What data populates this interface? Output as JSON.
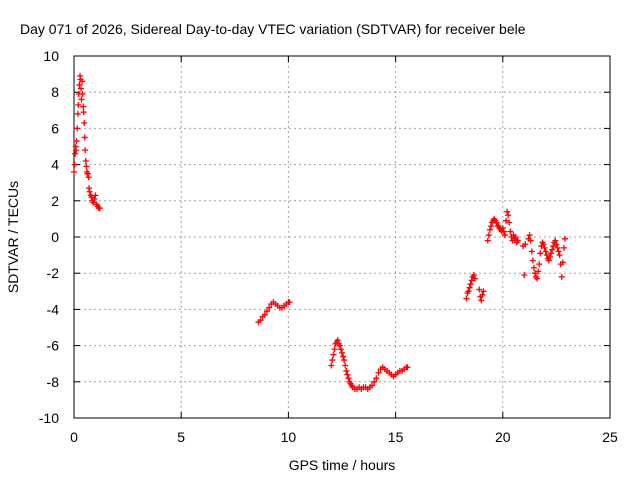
{
  "chart_data": {
    "type": "scatter",
    "title": "Day 071 of 2026, Sidereal Day-to-day VTEC variation (SDTVAR) for receiver bele",
    "xlabel": "GPS time / hours",
    "ylabel": "SDTVAR / TECUs",
    "xlim": [
      0,
      25
    ],
    "ylim": [
      -10,
      10
    ],
    "xticks": [
      0,
      5,
      10,
      15,
      20,
      25
    ],
    "yticks": [
      -10,
      -8,
      -6,
      -4,
      -2,
      0,
      2,
      4,
      6,
      8,
      10
    ],
    "grid": true,
    "marker": "plus",
    "color": "#ff0000",
    "series": [
      {
        "name": "segment-1",
        "points": [
          [
            0.0,
            3.6
          ],
          [
            0.03,
            4.0
          ],
          [
            0.05,
            4.6
          ],
          [
            0.08,
            5.0
          ],
          [
            0.1,
            4.8
          ],
          [
            0.12,
            5.3
          ],
          [
            0.15,
            6.0
          ],
          [
            0.18,
            6.8
          ],
          [
            0.2,
            7.3
          ],
          [
            0.22,
            7.9
          ],
          [
            0.25,
            8.4
          ],
          [
            0.28,
            8.9
          ],
          [
            0.3,
            8.7
          ],
          [
            0.33,
            8.2
          ],
          [
            0.35,
            7.6
          ],
          [
            0.38,
            8.6
          ],
          [
            0.4,
            7.9
          ],
          [
            0.43,
            7.2
          ],
          [
            0.45,
            6.9
          ],
          [
            0.48,
            6.3
          ],
          [
            0.5,
            5.5
          ],
          [
            0.52,
            4.8
          ],
          [
            0.55,
            4.2
          ],
          [
            0.58,
            3.9
          ],
          [
            0.6,
            3.6
          ],
          [
            0.63,
            3.5
          ],
          [
            0.65,
            3.5
          ],
          [
            0.68,
            3.3
          ],
          [
            0.7,
            2.7
          ],
          [
            0.73,
            2.5
          ],
          [
            0.78,
            2.3
          ],
          [
            0.82,
            2.2
          ],
          [
            0.85,
            2.0
          ],
          [
            0.9,
            1.9
          ],
          [
            0.95,
            2.1
          ],
          [
            1.0,
            2.3
          ],
          [
            1.05,
            1.8
          ],
          [
            1.1,
            1.7
          ],
          [
            1.15,
            1.6
          ],
          [
            1.2,
            1.6
          ]
        ]
      },
      {
        "name": "segment-2",
        "points": [
          [
            8.6,
            -4.7
          ],
          [
            8.7,
            -4.6
          ],
          [
            8.8,
            -4.4
          ],
          [
            8.9,
            -4.3
          ],
          [
            9.0,
            -4.1
          ],
          [
            9.1,
            -3.9
          ],
          [
            9.2,
            -3.7
          ],
          [
            9.3,
            -3.6
          ],
          [
            9.4,
            -3.7
          ],
          [
            9.5,
            -3.8
          ],
          [
            9.6,
            -3.9
          ],
          [
            9.7,
            -3.9
          ],
          [
            9.8,
            -3.8
          ],
          [
            9.9,
            -3.7
          ],
          [
            10.0,
            -3.6
          ],
          [
            10.05,
            -3.6
          ]
        ]
      },
      {
        "name": "segment-3",
        "points": [
          [
            12.0,
            -7.1
          ],
          [
            12.05,
            -6.8
          ],
          [
            12.1,
            -6.5
          ],
          [
            12.15,
            -6.2
          ],
          [
            12.2,
            -5.9
          ],
          [
            12.25,
            -5.8
          ],
          [
            12.3,
            -5.7
          ],
          [
            12.35,
            -5.9
          ],
          [
            12.4,
            -6.0
          ],
          [
            12.45,
            -6.2
          ],
          [
            12.5,
            -6.4
          ],
          [
            12.55,
            -6.6
          ],
          [
            12.6,
            -6.8
          ],
          [
            12.65,
            -7.1
          ],
          [
            12.7,
            -7.4
          ],
          [
            12.75,
            -7.6
          ],
          [
            12.8,
            -7.8
          ],
          [
            12.85,
            -8.0
          ],
          [
            12.9,
            -8.1
          ],
          [
            12.95,
            -8.2
          ],
          [
            13.0,
            -8.3
          ],
          [
            13.1,
            -8.4
          ],
          [
            13.2,
            -8.4
          ],
          [
            13.3,
            -8.3
          ],
          [
            13.4,
            -8.4
          ],
          [
            13.5,
            -8.3
          ],
          [
            13.6,
            -8.3
          ],
          [
            13.7,
            -8.4
          ],
          [
            13.8,
            -8.3
          ],
          [
            13.9,
            -8.2
          ],
          [
            14.0,
            -8.0
          ],
          [
            14.1,
            -7.8
          ],
          [
            14.2,
            -7.5
          ],
          [
            14.3,
            -7.3
          ],
          [
            14.4,
            -7.2
          ],
          [
            14.5,
            -7.3
          ],
          [
            14.6,
            -7.4
          ],
          [
            14.7,
            -7.5
          ],
          [
            14.8,
            -7.6
          ],
          [
            14.9,
            -7.7
          ],
          [
            15.0,
            -7.6
          ],
          [
            15.1,
            -7.5
          ],
          [
            15.2,
            -7.4
          ],
          [
            15.3,
            -7.4
          ],
          [
            15.4,
            -7.3
          ],
          [
            15.5,
            -7.2
          ],
          [
            15.55,
            -7.2
          ]
        ]
      },
      {
        "name": "segment-4",
        "points": [
          [
            18.3,
            -3.4
          ],
          [
            18.35,
            -3.1
          ],
          [
            18.4,
            -3.0
          ],
          [
            18.45,
            -2.8
          ],
          [
            18.5,
            -2.6
          ],
          [
            18.55,
            -2.4
          ],
          [
            18.6,
            -2.2
          ],
          [
            18.65,
            -2.1
          ],
          [
            18.7,
            -2.3
          ],
          [
            18.9,
            -2.9
          ],
          [
            18.95,
            -3.3
          ],
          [
            19.0,
            -3.5
          ],
          [
            19.05,
            -3.2
          ],
          [
            19.1,
            -3.0
          ]
        ]
      },
      {
        "name": "segment-5",
        "points": [
          [
            19.3,
            -0.2
          ],
          [
            19.35,
            0.1
          ],
          [
            19.4,
            0.4
          ],
          [
            19.45,
            0.6
          ],
          [
            19.5,
            0.8
          ],
          [
            19.55,
            0.9
          ],
          [
            19.6,
            1.0
          ],
          [
            19.65,
            0.9
          ],
          [
            19.7,
            0.8
          ],
          [
            19.75,
            0.6
          ],
          [
            19.8,
            0.6
          ],
          [
            19.85,
            0.5
          ],
          [
            19.9,
            0.4
          ],
          [
            19.95,
            0.3
          ],
          [
            20.0,
            0.5
          ],
          [
            20.05,
            0.3
          ],
          [
            20.1,
            0.1
          ],
          [
            20.15,
            0.9
          ],
          [
            20.2,
            1.4
          ],
          [
            20.25,
            1.2
          ],
          [
            20.3,
            0.8
          ],
          [
            20.35,
            0.3
          ],
          [
            20.4,
            0.0
          ],
          [
            20.45,
            -0.2
          ],
          [
            20.5,
            0.1
          ],
          [
            20.55,
            -0.1
          ],
          [
            20.6,
            0.0
          ],
          [
            20.65,
            -0.3
          ],
          [
            20.7,
            -0.2
          ]
        ]
      },
      {
        "name": "segment-6",
        "points": [
          [
            20.95,
            -0.5
          ],
          [
            21.0,
            -2.1
          ],
          [
            21.05,
            -0.4
          ],
          [
            21.2,
            -0.1
          ],
          [
            21.25,
            0.1
          ],
          [
            21.3,
            -0.2
          ],
          [
            21.35,
            -0.8
          ],
          [
            21.4,
            -1.3
          ],
          [
            21.45,
            -1.7
          ],
          [
            21.5,
            -2.0
          ],
          [
            21.55,
            -2.2
          ],
          [
            21.6,
            -2.3
          ],
          [
            21.65,
            -1.9
          ],
          [
            21.7,
            -1.5
          ],
          [
            21.75,
            -0.9
          ],
          [
            21.8,
            -0.5
          ],
          [
            21.85,
            -0.3
          ],
          [
            21.9,
            -0.4
          ],
          [
            21.95,
            -0.6
          ],
          [
            22.0,
            -0.8
          ],
          [
            22.05,
            -1.0
          ],
          [
            22.1,
            -1.2
          ],
          [
            22.15,
            -1.3
          ],
          [
            22.2,
            -1.1
          ],
          [
            22.25,
            -0.9
          ],
          [
            22.3,
            -0.7
          ],
          [
            22.35,
            -0.5
          ],
          [
            22.4,
            -0.3
          ],
          [
            22.45,
            -0.2
          ],
          [
            22.5,
            -0.4
          ],
          [
            22.55,
            -0.6
          ],
          [
            22.6,
            -0.8
          ],
          [
            22.65,
            -1.0
          ],
          [
            22.7,
            -1.5
          ],
          [
            22.75,
            -2.2
          ],
          [
            22.8,
            -1.4
          ],
          [
            22.85,
            -0.6
          ],
          [
            22.9,
            -0.1
          ]
        ]
      }
    ]
  }
}
